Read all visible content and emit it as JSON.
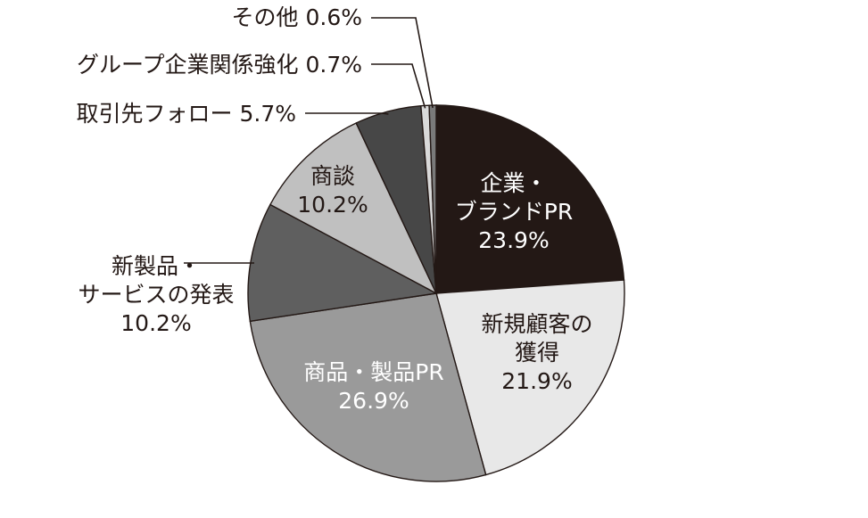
{
  "chart_data": {
    "type": "pie",
    "title": "",
    "slices": [
      {
        "label_lines": [
          "企業・",
          "ブランドPR"
        ],
        "value_text": "23.9%",
        "value": 23.9,
        "color": "#231815",
        "text_color": "#ffffff"
      },
      {
        "label_lines": [
          "新規顧客の",
          "獲得"
        ],
        "value_text": "21.9%",
        "value": 21.9,
        "color": "#e8e8e8",
        "text_color": "#231815"
      },
      {
        "label_lines": [
          "商品・製品PR"
        ],
        "value_text": "26.9%",
        "value": 26.9,
        "color": "#9a9a9a",
        "text_color": "#ffffff"
      },
      {
        "label_lines": [
          "新製品・",
          "サービスの発表"
        ],
        "value_text": "10.2%",
        "value": 10.2,
        "color": "#5f5f5f",
        "text_color": "#231815"
      },
      {
        "label_lines": [
          "商談"
        ],
        "value_text": "10.2%",
        "value": 10.2,
        "color": "#c0c0c0",
        "text_color": "#231815"
      },
      {
        "label_lines": [
          "取引先フォロー"
        ],
        "value_text": "5.7%",
        "value": 5.7,
        "color": "#474747",
        "text_color": "#231815"
      },
      {
        "label_lines": [
          "グループ企業関係強化"
        ],
        "value_text": "0.7%",
        "value": 0.7,
        "color": "#d9d9d9",
        "text_color": "#231815"
      },
      {
        "label_lines": [
          "その他"
        ],
        "value_text": "0.6%",
        "value": 0.6,
        "color": "#7a7a7a",
        "text_color": "#231815"
      }
    ]
  }
}
